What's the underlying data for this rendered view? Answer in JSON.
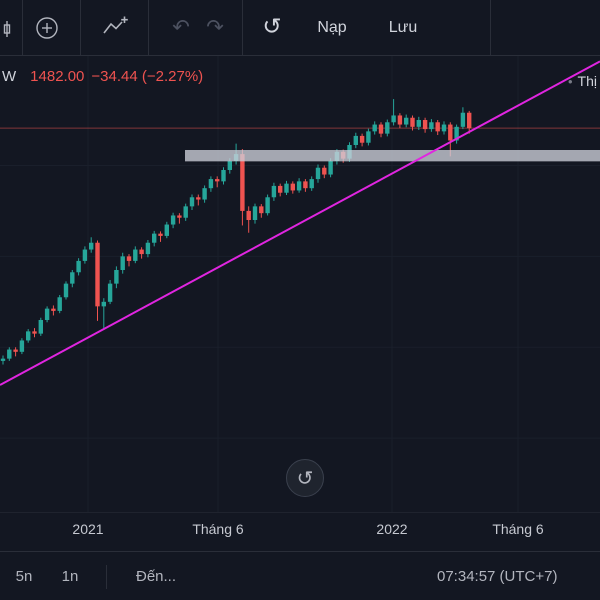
{
  "toolbar": {
    "load_label": "Nạp",
    "save_label": "Lưu"
  },
  "icons": {
    "undo": "↶",
    "redo": "↷",
    "reload": "↺",
    "reset_view": "↺",
    "legend_bullet": "•"
  },
  "legend": {
    "interval": "W",
    "price": "1482.00",
    "change": "−34.44 (−2.27%)",
    "right_partial": "Thị"
  },
  "time_axis": [
    {
      "label": "2021"
    },
    {
      "label": "Tháng 6"
    },
    {
      "label": "2022"
    },
    {
      "label": "Tháng 6"
    }
  ],
  "footer": {
    "range_5d": "5n",
    "range_1d": "1n",
    "goto": "Đến...",
    "clock": "07:34:57 (UTC+7)"
  },
  "chart_data": {
    "type": "candlestick",
    "interval": "W",
    "last_price": 1482.0,
    "change": -34.44,
    "change_pct": -2.27,
    "ylim": [
      554,
      1643
    ],
    "x_start": 3,
    "x_step": 6.3,
    "colors": {
      "up": "#26a69a",
      "down": "#ef5350",
      "trendline": "#e025e0",
      "band": "#cdd0da",
      "grid": "#1a1f2b",
      "price_line": "#ef5350"
    },
    "grid": {
      "vertical_x": [
        88,
        218,
        392,
        518
      ],
      "horizontal_prices": [
        800,
        1000,
        1200,
        1400
      ]
    },
    "price_line": 1482,
    "trendline": {
      "x1": 0,
      "price1": 917,
      "x2": 600,
      "price2": 1629
    },
    "band": {
      "x1": 185,
      "x2": 600,
      "price_top": 1434,
      "price_bottom": 1409
    },
    "candles": [
      [
        970,
        982,
        962,
        975
      ],
      [
        975,
        1000,
        970,
        995
      ],
      [
        995,
        1000,
        980,
        990
      ],
      [
        990,
        1020,
        985,
        1015
      ],
      [
        1015,
        1040,
        1010,
        1035
      ],
      [
        1035,
        1042,
        1022,
        1030
      ],
      [
        1030,
        1065,
        1025,
        1060
      ],
      [
        1060,
        1090,
        1055,
        1085
      ],
      [
        1085,
        1092,
        1070,
        1080
      ],
      [
        1080,
        1115,
        1075,
        1110
      ],
      [
        1110,
        1145,
        1105,
        1140
      ],
      [
        1140,
        1170,
        1132,
        1165
      ],
      [
        1165,
        1196,
        1158,
        1190
      ],
      [
        1190,
        1222,
        1184,
        1215
      ],
      [
        1215,
        1242,
        1208,
        1230
      ],
      [
        1230,
        1235,
        1058,
        1090
      ],
      [
        1090,
        1108,
        1040,
        1100
      ],
      [
        1100,
        1148,
        1095,
        1140
      ],
      [
        1140,
        1178,
        1130,
        1170
      ],
      [
        1170,
        1208,
        1162,
        1200
      ],
      [
        1200,
        1205,
        1178,
        1190
      ],
      [
        1190,
        1222,
        1185,
        1215
      ],
      [
        1215,
        1220,
        1195,
        1205
      ],
      [
        1205,
        1236,
        1198,
        1230
      ],
      [
        1230,
        1256,
        1222,
        1250
      ],
      [
        1250,
        1255,
        1232,
        1245
      ],
      [
        1245,
        1276,
        1240,
        1270
      ],
      [
        1270,
        1296,
        1262,
        1290
      ],
      [
        1290,
        1295,
        1272,
        1285
      ],
      [
        1285,
        1316,
        1278,
        1310
      ],
      [
        1310,
        1336,
        1302,
        1330
      ],
      [
        1330,
        1336,
        1312,
        1325
      ],
      [
        1325,
        1356,
        1318,
        1350
      ],
      [
        1350,
        1376,
        1342,
        1370
      ],
      [
        1370,
        1376,
        1352,
        1365
      ],
      [
        1365,
        1396,
        1358,
        1390
      ],
      [
        1390,
        1416,
        1382,
        1410
      ],
      [
        1410,
        1448,
        1402,
        1425
      ],
      [
        1425,
        1436,
        1268,
        1300
      ],
      [
        1300,
        1310,
        1252,
        1280
      ],
      [
        1280,
        1316,
        1272,
        1310
      ],
      [
        1310,
        1315,
        1285,
        1295
      ],
      [
        1295,
        1336,
        1290,
        1330
      ],
      [
        1330,
        1362,
        1322,
        1355
      ],
      [
        1355,
        1360,
        1332,
        1340
      ],
      [
        1340,
        1366,
        1335,
        1360
      ],
      [
        1360,
        1365,
        1338,
        1345
      ],
      [
        1345,
        1372,
        1340,
        1365
      ],
      [
        1365,
        1370,
        1342,
        1350
      ],
      [
        1350,
        1376,
        1344,
        1370
      ],
      [
        1370,
        1402,
        1362,
        1395
      ],
      [
        1395,
        1400,
        1372,
        1380
      ],
      [
        1380,
        1416,
        1374,
        1410
      ],
      [
        1410,
        1436,
        1402,
        1430
      ],
      [
        1430,
        1435,
        1406,
        1415
      ],
      [
        1415,
        1451,
        1408,
        1445
      ],
      [
        1445,
        1472,
        1438,
        1465
      ],
      [
        1465,
        1470,
        1442,
        1450
      ],
      [
        1450,
        1481,
        1444,
        1475
      ],
      [
        1475,
        1497,
        1468,
        1490
      ],
      [
        1490,
        1495,
        1462,
        1470
      ],
      [
        1470,
        1501,
        1464,
        1495
      ],
      [
        1495,
        1546,
        1488,
        1510
      ],
      [
        1510,
        1515,
        1482,
        1490
      ],
      [
        1490,
        1512,
        1484,
        1505
      ],
      [
        1505,
        1510,
        1477,
        1485
      ],
      [
        1485,
        1507,
        1478,
        1500
      ],
      [
        1500,
        1505,
        1472,
        1480
      ],
      [
        1480,
        1502,
        1474,
        1495
      ],
      [
        1495,
        1500,
        1467,
        1475
      ],
      [
        1475,
        1497,
        1468,
        1490
      ],
      [
        1490,
        1495,
        1420,
        1455
      ],
      [
        1455,
        1490,
        1448,
        1485
      ],
      [
        1485,
        1528,
        1480,
        1516
      ],
      [
        1516,
        1520,
        1470,
        1482
      ]
    ]
  }
}
